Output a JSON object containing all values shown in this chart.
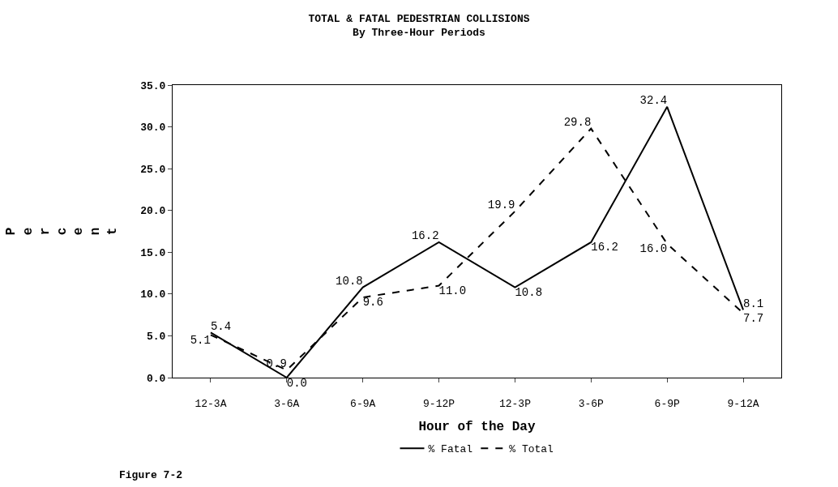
{
  "chart_data": {
    "type": "line",
    "title": "TOTAL & FATAL PEDESTRIAN COLLISIONS",
    "subtitle": "By Three-Hour Periods",
    "xlabel": "Hour of the Day",
    "ylabel": "Percent",
    "categories": [
      "12-3A",
      "3-6A",
      "6-9A",
      "9-12P",
      "12-3P",
      "3-6P",
      "6-9P",
      "9-12A"
    ],
    "series": [
      {
        "name": "% Fatal",
        "color": "#000000",
        "line_style": "solid",
        "values": [
          5.4,
          0.0,
          10.8,
          16.2,
          10.8,
          16.2,
          32.4,
          8.1
        ],
        "value_labels": [
          "5.4",
          "0.0",
          "10.8",
          "16.2",
          "10.8",
          "16.2",
          "32.4",
          "8.1"
        ]
      },
      {
        "name": "% Total",
        "color": "#000000",
        "line_style": "dashed",
        "values": [
          5.1,
          0.9,
          9.6,
          11.0,
          19.9,
          29.8,
          16.0,
          7.7
        ],
        "value_labels": [
          "5.1",
          "0.9",
          "9.6",
          "11.0",
          "19.9",
          "29.8",
          "16.0",
          "7.7"
        ]
      }
    ],
    "ylim": [
      0,
      35
    ],
    "yticks": [
      {
        "value": 0,
        "label": "0.0"
      },
      {
        "value": 5,
        "label": "5.0"
      },
      {
        "value": 10,
        "label": "10.0"
      },
      {
        "value": 15,
        "label": "15.0"
      },
      {
        "value": 20,
        "label": "20.0"
      },
      {
        "value": 25,
        "label": "25.0"
      },
      {
        "value": 30,
        "label": "30.0"
      },
      {
        "value": 35,
        "label": "35.0"
      }
    ],
    "data_labels": true,
    "marker": "none",
    "legend": "bottom",
    "annotations": [
      "Figure 7-2"
    ]
  }
}
